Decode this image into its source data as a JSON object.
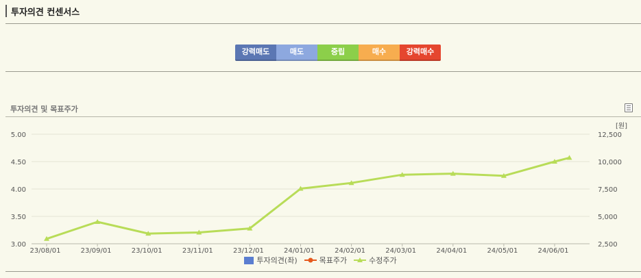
{
  "header": {
    "title": "투자의견 컨센서스"
  },
  "consensus": {
    "segments": [
      {
        "label": "강력매도",
        "color": "#5b77b3"
      },
      {
        "label": "매도",
        "color": "#8da8df"
      },
      {
        "label": "중립",
        "color": "#8ccf4a"
      },
      {
        "label": "매수",
        "color": "#f7ad4f"
      },
      {
        "label": "강력매수",
        "color": "#e5462f"
      }
    ]
  },
  "chart_section": {
    "title": "투자의견 및 목표주가",
    "icon": "list-document-icon"
  },
  "chart_data": {
    "type": "line",
    "title": "",
    "x": [
      "23/08/01",
      "23/09/01",
      "23/10/01",
      "23/11/01",
      "23/12/01",
      "24/01/01",
      "24/02/01",
      "24/03/01",
      "24/04/01",
      "24/05/01",
      "24/06/01"
    ],
    "left_axis": {
      "ticks": [
        "3.00",
        "3.50",
        "4.00",
        "4.50",
        "5.00"
      ],
      "range": [
        3.0,
        5.0
      ]
    },
    "right_axis": {
      "unit": "[원]",
      "ticks": [
        "2,500",
        "5,000",
        "7,500",
        "10,000",
        "12,500"
      ],
      "range": [
        2500,
        12500
      ]
    },
    "grid": true,
    "legend_position": "bottom",
    "series": [
      {
        "name": "투자의견(좌)",
        "axis": "left",
        "color": "#5b7ed0",
        "points": []
      },
      {
        "name": "목표주가",
        "axis": "right",
        "color": "#e55a1e",
        "points": []
      },
      {
        "name": "수정주가",
        "axis": "right",
        "color": "#b8dc58",
        "points": [
          {
            "x": "2023-08-01",
            "y": 2950
          },
          {
            "x": "2023-09-01",
            "y": 4500
          },
          {
            "x": "2023-10-01",
            "y": 3430
          },
          {
            "x": "2023-11-01",
            "y": 3530
          },
          {
            "x": "2023-12-01",
            "y": 3900
          },
          {
            "x": "2024-01-01",
            "y": 7530
          },
          {
            "x": "2024-02-01",
            "y": 8050
          },
          {
            "x": "2024-03-01",
            "y": 8800
          },
          {
            "x": "2024-04-01",
            "y": 8900
          },
          {
            "x": "2024-05-01",
            "y": 8700
          },
          {
            "x": "2024-06-01",
            "y": 10000
          },
          {
            "x": "2024-06-10",
            "y": 10350
          }
        ]
      }
    ]
  }
}
